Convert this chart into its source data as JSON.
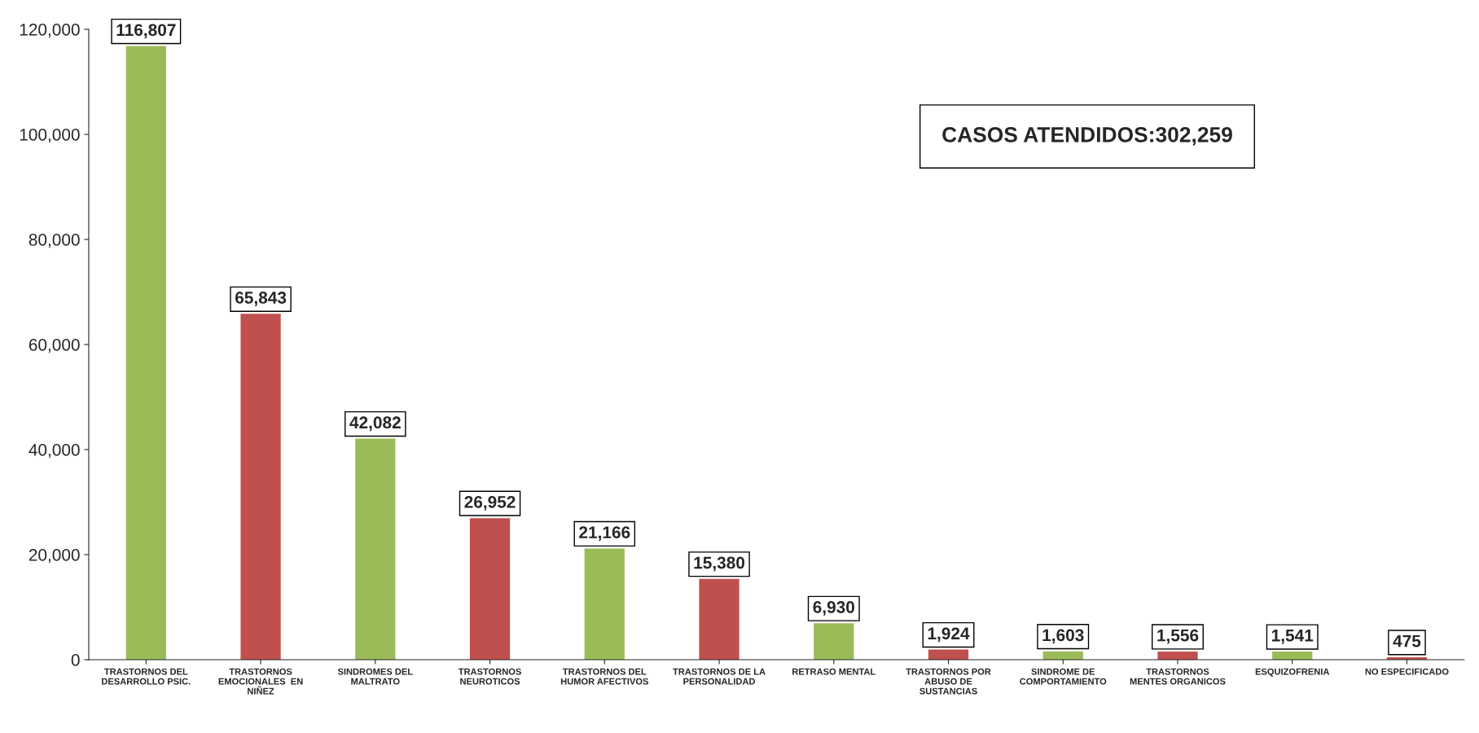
{
  "chart_data": {
    "type": "bar",
    "categories": [
      "TRASTORNOS DEL\nDESARROLLO PSIC.",
      "TRASTORNOS\nEMOCIONALES  EN\nNIÑEZ",
      "SINDROMES DEL\nMALTRATO",
      "TRASTORNOS\nNEUROTICOS",
      "TRASTORNOS DEL\nHUMOR AFECTIVOS",
      "TRASTORNOS DE LA\nPERSONALIDAD",
      "RETRASO MENTAL",
      "TRASTORNOS POR\nABUSO DE\nSUSTANCIAS",
      "SINDROME DE\nCOMPORTAMIENTO",
      "TRASTORNOS\nMENTES ORGANICOS",
      "ESQUIZOFRENIA",
      "NO ESPECIFICADO"
    ],
    "values": [
      116807,
      65843,
      42082,
      26952,
      21166,
      15380,
      6930,
      1924,
      1603,
      1556,
      1541,
      475
    ],
    "colors": [
      "#9bbb59",
      "#c0504d",
      "#9bbb59",
      "#c0504d",
      "#9bbb59",
      "#c0504d",
      "#9bbb59",
      "#c0504d",
      "#9bbb59",
      "#c0504d",
      "#9bbb59",
      "#c0504d"
    ],
    "value_labels": [
      "116,807",
      "65,843",
      "42,082",
      "26,952",
      "21,166",
      "15,380",
      "6,930",
      "1,924",
      "1,603",
      "1,556",
      "1,541",
      "475"
    ],
    "ylim": [
      0,
      120000
    ],
    "yticks": [
      0,
      {
        "value": 20000,
        "label": "20,000"
      },
      {
        "value": 40000,
        "label": "40,000"
      },
      {
        "value": 60000,
        "label": "60,000"
      },
      {
        "value": 80000,
        "label": "80,000"
      },
      {
        "value": 100000,
        "label": "100,000"
      },
      {
        "value": 120000,
        "label": "120,000"
      }
    ],
    "annotations": [
      "CASOS ATENDIDOS:302,259"
    ],
    "grid": false
  }
}
